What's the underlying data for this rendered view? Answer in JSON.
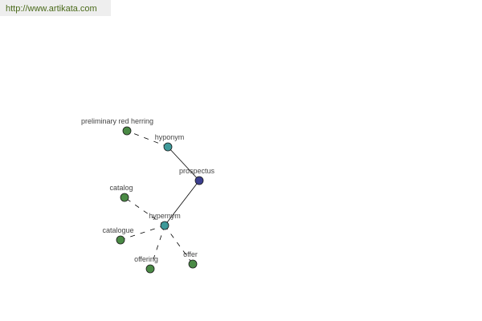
{
  "url_text": "http://www.artikata.com",
  "colors": {
    "root": "#3b3f8f",
    "relation": "#3f9a9a",
    "term": "#4a8a45",
    "stroke": "#1a1a1a"
  },
  "nodes": [
    {
      "id": "prospectus",
      "label": "prospectus",
      "kind": "root"
    },
    {
      "id": "hyponym",
      "label": "hyponym",
      "kind": "relation"
    },
    {
      "id": "hypernym",
      "label": "hypernym",
      "kind": "relation"
    },
    {
      "id": "prelim",
      "label": "preliminary red herring",
      "kind": "term"
    },
    {
      "id": "catalog",
      "label": "catalog",
      "kind": "term"
    },
    {
      "id": "catalogue",
      "label": "catalogue",
      "kind": "term"
    },
    {
      "id": "offering",
      "label": "offering",
      "kind": "term"
    },
    {
      "id": "offer",
      "label": "offer",
      "kind": "term"
    }
  ],
  "edges": [
    {
      "from": "prospectus",
      "to": "hyponym",
      "style": "solid"
    },
    {
      "from": "prospectus",
      "to": "hypernym",
      "style": "solid"
    },
    {
      "from": "hyponym",
      "to": "prelim",
      "style": "dashed"
    },
    {
      "from": "hypernym",
      "to": "catalog",
      "style": "dashed"
    },
    {
      "from": "hypernym",
      "to": "catalogue",
      "style": "dashed"
    },
    {
      "from": "hypernym",
      "to": "offering",
      "style": "dashed"
    },
    {
      "from": "hypernym",
      "to": "offer",
      "style": "dashed"
    }
  ]
}
